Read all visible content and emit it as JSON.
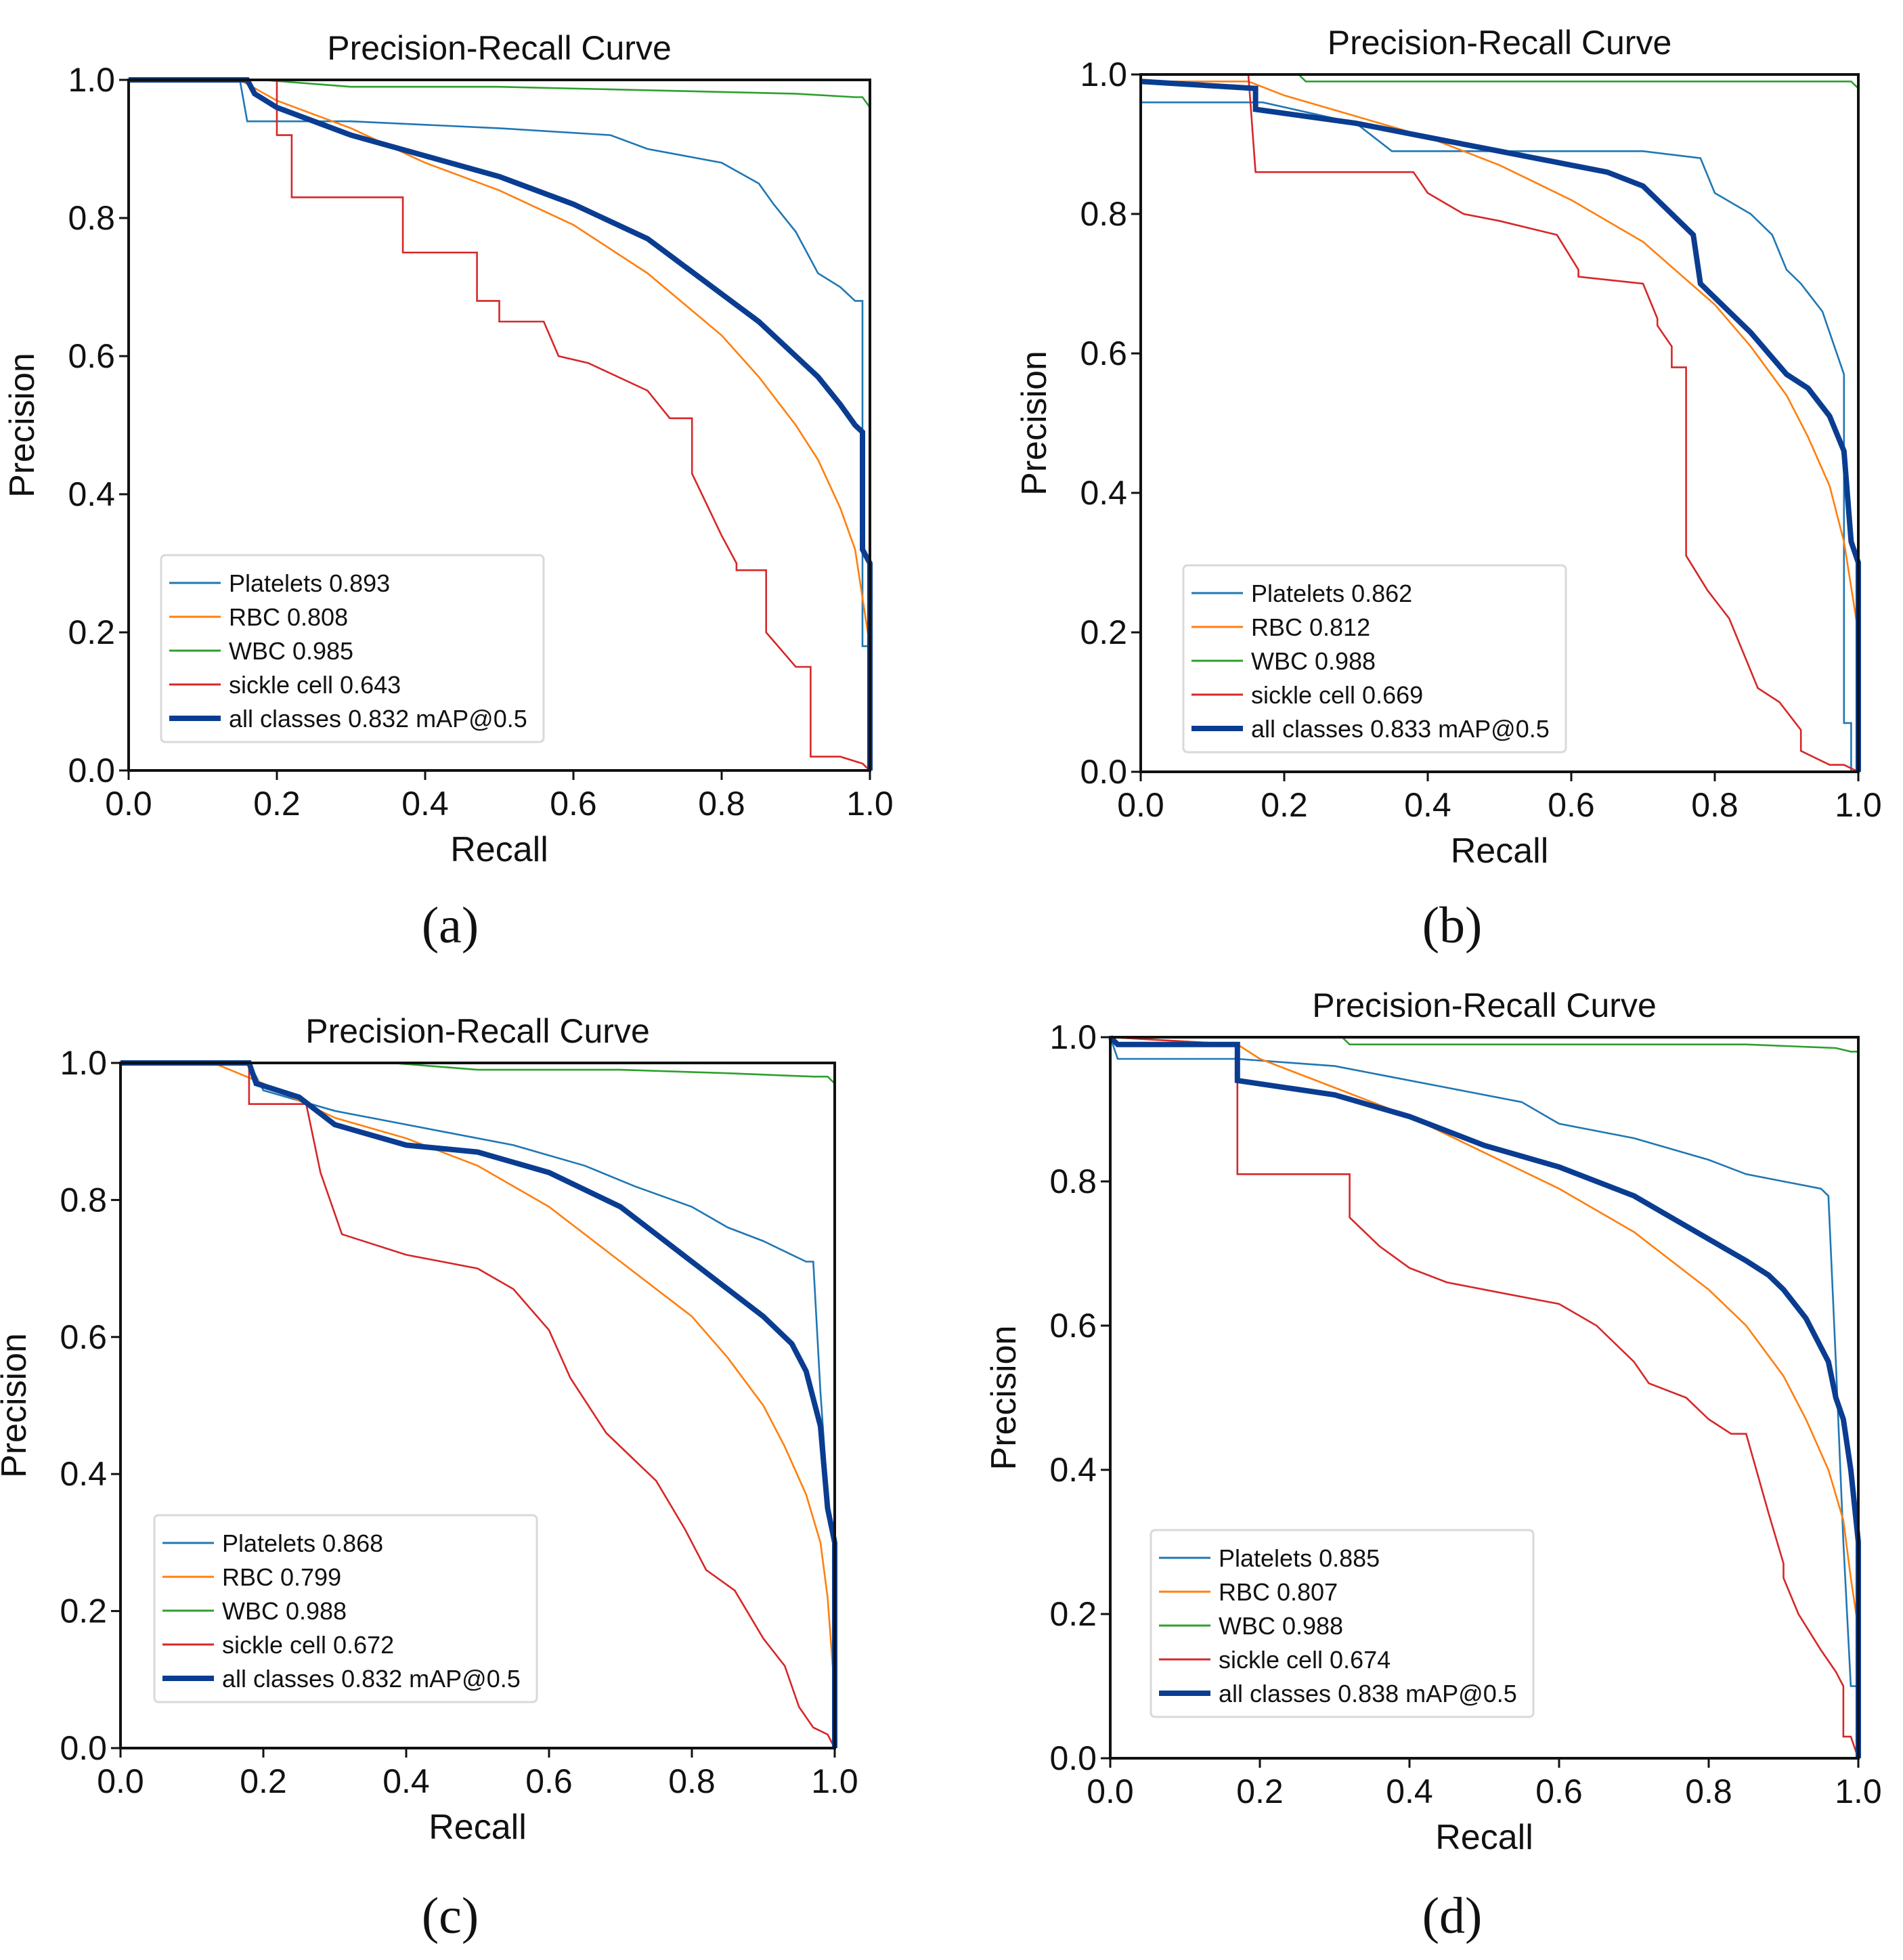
{
  "figure": {
    "panel_labels": [
      "(a)",
      "(b)",
      "(c)",
      "(d)"
    ]
  },
  "colors": {
    "Platelets": "#1f77b4",
    "RBC": "#ff7f0e",
    "WBC": "#2ca02c",
    "sickle cell": "#d62728",
    "all classes": "#0a3d91"
  },
  "chart_data": [
    {
      "type": "line",
      "panel": "(a)",
      "title": "Precision-Recall Curve",
      "xlabel": "Recall",
      "ylabel": "Precision",
      "xlim": [
        0,
        1
      ],
      "ylim": [
        0,
        1
      ],
      "xticks": [
        "0.0",
        "0.2",
        "0.4",
        "0.6",
        "0.8",
        "1.0"
      ],
      "yticks": [
        "0.0",
        "0.2",
        "0.4",
        "0.6",
        "0.8",
        "1.0"
      ],
      "legend_position": "lower-left",
      "series": [
        {
          "name": "Platelets",
          "label": "Platelets 0.893",
          "ap": 0.893,
          "x": [
            0,
            0.15,
            0.16,
            0.3,
            0.5,
            0.65,
            0.7,
            0.75,
            0.8,
            0.85,
            0.87,
            0.9,
            0.93,
            0.96,
            0.98,
            0.99,
            0.99,
            1.0,
            1.0
          ],
          "y": [
            1.0,
            1.0,
            0.94,
            0.94,
            0.93,
            0.92,
            0.9,
            0.89,
            0.88,
            0.85,
            0.82,
            0.78,
            0.72,
            0.7,
            0.68,
            0.68,
            0.18,
            0.18,
            0.0
          ]
        },
        {
          "name": "RBC",
          "label": "RBC 0.808",
          "ap": 0.808,
          "x": [
            0,
            0.15,
            0.2,
            0.3,
            0.4,
            0.5,
            0.6,
            0.7,
            0.8,
            0.85,
            0.9,
            0.93,
            0.96,
            0.98,
            0.99,
            1.0,
            1.0
          ],
          "y": [
            1.0,
            1.0,
            0.97,
            0.93,
            0.88,
            0.84,
            0.79,
            0.72,
            0.63,
            0.57,
            0.5,
            0.45,
            0.38,
            0.32,
            0.25,
            0.18,
            0.0
          ]
        },
        {
          "name": "WBC",
          "label": "WBC 0.985",
          "ap": 0.985,
          "x": [
            0,
            0.18,
            0.3,
            0.5,
            0.7,
            0.9,
            0.98,
            0.99,
            1.0,
            1.0
          ],
          "y": [
            1.0,
            1.0,
            0.99,
            0.99,
            0.985,
            0.98,
            0.975,
            0.975,
            0.96,
            0.0
          ]
        },
        {
          "name": "sickle cell",
          "label": "sickle cell 0.643",
          "ap": 0.643,
          "x": [
            0,
            0.2,
            0.2,
            0.22,
            0.22,
            0.37,
            0.37,
            0.47,
            0.47,
            0.5,
            0.5,
            0.56,
            0.58,
            0.62,
            0.7,
            0.73,
            0.76,
            0.76,
            0.8,
            0.82,
            0.82,
            0.86,
            0.86,
            0.9,
            0.92,
            0.92,
            0.96,
            0.99,
            1.0,
            1.0
          ],
          "y": [
            1.0,
            1.0,
            0.92,
            0.92,
            0.83,
            0.83,
            0.75,
            0.75,
            0.68,
            0.68,
            0.65,
            0.65,
            0.6,
            0.59,
            0.55,
            0.51,
            0.51,
            0.43,
            0.34,
            0.3,
            0.29,
            0.29,
            0.2,
            0.15,
            0.15,
            0.02,
            0.02,
            0.01,
            0.0,
            0.0
          ]
        },
        {
          "name": "all classes",
          "label": "all classes 0.832 mAP@0.5",
          "ap": 0.832,
          "bold": true,
          "x": [
            0,
            0.16,
            0.17,
            0.2,
            0.3,
            0.4,
            0.5,
            0.6,
            0.7,
            0.75,
            0.8,
            0.85,
            0.9,
            0.93,
            0.96,
            0.98,
            0.99,
            0.99,
            1.0,
            1.0
          ],
          "y": [
            1.0,
            1.0,
            0.98,
            0.96,
            0.92,
            0.89,
            0.86,
            0.82,
            0.77,
            0.73,
            0.69,
            0.65,
            0.6,
            0.57,
            0.53,
            0.5,
            0.49,
            0.32,
            0.3,
            0.0
          ]
        }
      ]
    },
    {
      "type": "line",
      "panel": "(b)",
      "title": "Precision-Recall Curve",
      "xlabel": "Recall",
      "ylabel": "Precision",
      "xlim": [
        0,
        1
      ],
      "ylim": [
        0,
        1
      ],
      "xticks": [
        "0.0",
        "0.2",
        "0.4",
        "0.6",
        "0.8",
        "1.0"
      ],
      "yticks": [
        "0.0",
        "0.2",
        "0.4",
        "0.6",
        "0.8",
        "1.0"
      ],
      "legend_position": "lower-left",
      "series": [
        {
          "name": "Platelets",
          "label": "Platelets 0.862",
          "ap": 0.862,
          "x": [
            0,
            0.17,
            0.3,
            0.35,
            0.5,
            0.7,
            0.78,
            0.8,
            0.85,
            0.88,
            0.9,
            0.92,
            0.95,
            0.97,
            0.98,
            0.98,
            0.99,
            0.99,
            1.0
          ],
          "y": [
            0.96,
            0.96,
            0.93,
            0.89,
            0.89,
            0.89,
            0.88,
            0.83,
            0.8,
            0.77,
            0.72,
            0.7,
            0.66,
            0.6,
            0.57,
            0.07,
            0.07,
            0.0,
            0.0
          ]
        },
        {
          "name": "RBC",
          "label": "RBC 0.812",
          "ap": 0.812,
          "x": [
            0,
            0.15,
            0.2,
            0.3,
            0.4,
            0.5,
            0.6,
            0.7,
            0.8,
            0.85,
            0.9,
            0.93,
            0.96,
            0.98,
            1.0,
            1.0
          ],
          "y": [
            0.99,
            0.99,
            0.97,
            0.94,
            0.91,
            0.87,
            0.82,
            0.76,
            0.67,
            0.61,
            0.54,
            0.48,
            0.41,
            0.33,
            0.2,
            0.0
          ]
        },
        {
          "name": "WBC",
          "label": "WBC 0.988",
          "ap": 0.988,
          "x": [
            0,
            0.22,
            0.23,
            0.5,
            0.8,
            0.99,
            1.0,
            1.0
          ],
          "y": [
            1.0,
            1.0,
            0.99,
            0.99,
            0.99,
            0.99,
            0.98,
            0.0
          ]
        },
        {
          "name": "sickle cell",
          "label": "sickle cell 0.669",
          "ap": 0.669,
          "x": [
            0,
            0.15,
            0.16,
            0.16,
            0.38,
            0.4,
            0.45,
            0.5,
            0.58,
            0.61,
            0.61,
            0.7,
            0.72,
            0.72,
            0.74,
            0.74,
            0.76,
            0.76,
            0.79,
            0.82,
            0.84,
            0.86,
            0.89,
            0.92,
            0.92,
            0.96,
            0.98,
            1.0,
            1.0
          ],
          "y": [
            1.0,
            1.0,
            0.86,
            0.86,
            0.86,
            0.83,
            0.8,
            0.79,
            0.77,
            0.72,
            0.71,
            0.7,
            0.65,
            0.64,
            0.61,
            0.58,
            0.58,
            0.31,
            0.26,
            0.22,
            0.17,
            0.12,
            0.1,
            0.06,
            0.03,
            0.01,
            0.01,
            0.0,
            0.0
          ]
        },
        {
          "name": "all classes",
          "label": "all classes 0.833 mAP@0.5",
          "ap": 0.833,
          "bold": true,
          "x": [
            0,
            0.16,
            0.16,
            0.3,
            0.4,
            0.5,
            0.6,
            0.65,
            0.7,
            0.75,
            0.77,
            0.78,
            0.8,
            0.85,
            0.9,
            0.93,
            0.96,
            0.98,
            0.99,
            1.0,
            1.0
          ],
          "y": [
            0.99,
            0.98,
            0.95,
            0.93,
            0.91,
            0.89,
            0.87,
            0.86,
            0.84,
            0.79,
            0.77,
            0.7,
            0.68,
            0.63,
            0.57,
            0.55,
            0.51,
            0.46,
            0.33,
            0.3,
            0.0
          ]
        }
      ]
    },
    {
      "type": "line",
      "panel": "(c)",
      "title": "Precision-Recall Curve",
      "xlabel": "Recall",
      "ylabel": "Precision",
      "xlim": [
        0,
        1
      ],
      "ylim": [
        0,
        1
      ],
      "xticks": [
        "0.0",
        "0.2",
        "0.4",
        "0.6",
        "0.8",
        "1.0"
      ],
      "yticks": [
        "0.0",
        "0.2",
        "0.4",
        "0.6",
        "0.8",
        "1.0"
      ],
      "legend_position": "lower-left",
      "series": [
        {
          "name": "Platelets",
          "label": "Platelets 0.868",
          "ap": 0.868,
          "x": [
            0,
            0.18,
            0.2,
            0.3,
            0.45,
            0.55,
            0.65,
            0.72,
            0.8,
            0.85,
            0.9,
            0.94,
            0.96,
            0.97,
            0.98,
            0.99,
            1.0,
            1.0
          ],
          "y": [
            1.0,
            1.0,
            0.96,
            0.93,
            0.9,
            0.88,
            0.85,
            0.82,
            0.79,
            0.76,
            0.74,
            0.72,
            0.71,
            0.71,
            0.52,
            0.37,
            0.28,
            0.0
          ]
        },
        {
          "name": "RBC",
          "label": "RBC 0.799",
          "ap": 0.799,
          "x": [
            0,
            0.13,
            0.2,
            0.3,
            0.4,
            0.5,
            0.6,
            0.7,
            0.8,
            0.85,
            0.9,
            0.93,
            0.96,
            0.98,
            0.99,
            1.0,
            1.0
          ],
          "y": [
            1.0,
            1.0,
            0.97,
            0.92,
            0.89,
            0.85,
            0.79,
            0.71,
            0.63,
            0.57,
            0.5,
            0.44,
            0.37,
            0.3,
            0.22,
            0.08,
            0.0
          ]
        },
        {
          "name": "WBC",
          "label": "WBC 0.988",
          "ap": 0.988,
          "x": [
            0,
            0.38,
            0.5,
            0.7,
            0.85,
            0.97,
            0.99,
            1.0,
            1.0
          ],
          "y": [
            1.0,
            1.0,
            0.99,
            0.99,
            0.985,
            0.98,
            0.98,
            0.97,
            0.0
          ]
        },
        {
          "name": "sickle cell",
          "label": "sickle cell 0.672",
          "ap": 0.672,
          "x": [
            0,
            0.18,
            0.18,
            0.26,
            0.28,
            0.28,
            0.31,
            0.31,
            0.4,
            0.5,
            0.55,
            0.6,
            0.63,
            0.68,
            0.72,
            0.75,
            0.79,
            0.82,
            0.86,
            0.9,
            0.93,
            0.95,
            0.97,
            0.99,
            1.0,
            1.0
          ],
          "y": [
            1.0,
            1.0,
            0.94,
            0.94,
            0.84,
            0.84,
            0.75,
            0.75,
            0.72,
            0.7,
            0.67,
            0.61,
            0.54,
            0.46,
            0.42,
            0.39,
            0.32,
            0.26,
            0.23,
            0.16,
            0.12,
            0.06,
            0.03,
            0.02,
            0.0,
            0.0
          ]
        },
        {
          "name": "all classes",
          "label": "all classes 0.832 mAP@0.5",
          "ap": 0.832,
          "bold": true,
          "x": [
            0,
            0.18,
            0.19,
            0.25,
            0.3,
            0.4,
            0.5,
            0.6,
            0.7,
            0.75,
            0.8,
            0.85,
            0.9,
            0.94,
            0.96,
            0.97,
            0.98,
            0.99,
            1.0,
            1.0
          ],
          "y": [
            1.0,
            1.0,
            0.97,
            0.95,
            0.91,
            0.88,
            0.87,
            0.84,
            0.79,
            0.75,
            0.71,
            0.67,
            0.63,
            0.59,
            0.55,
            0.51,
            0.47,
            0.35,
            0.3,
            0.0
          ]
        }
      ]
    },
    {
      "type": "line",
      "panel": "(d)",
      "title": "Precision-Recall Curve",
      "xlabel": "Recall",
      "ylabel": "Precision",
      "xlim": [
        0,
        1
      ],
      "ylim": [
        0,
        1
      ],
      "xticks": [
        "0.0",
        "0.2",
        "0.4",
        "0.6",
        "0.8",
        "1.0"
      ],
      "yticks": [
        "0.0",
        "0.2",
        "0.4",
        "0.6",
        "0.8",
        "1.0"
      ],
      "legend_position": "lower-left",
      "series": [
        {
          "name": "Platelets",
          "label": "Platelets 0.885",
          "ap": 0.885,
          "x": [
            0,
            0.01,
            0.17,
            0.3,
            0.45,
            0.55,
            0.6,
            0.7,
            0.8,
            0.85,
            0.9,
            0.95,
            0.96,
            0.97,
            0.98,
            0.99,
            1.0,
            1.0
          ],
          "y": [
            1.0,
            0.97,
            0.97,
            0.96,
            0.93,
            0.91,
            0.88,
            0.86,
            0.83,
            0.81,
            0.8,
            0.79,
            0.78,
            0.55,
            0.3,
            0.1,
            0.1,
            0.0
          ]
        },
        {
          "name": "RBC",
          "label": "RBC 0.807",
          "ap": 0.807,
          "x": [
            0,
            0.17,
            0.2,
            0.3,
            0.4,
            0.5,
            0.6,
            0.7,
            0.8,
            0.85,
            0.9,
            0.93,
            0.96,
            0.98,
            0.99,
            1.0,
            1.0
          ],
          "y": [
            1.0,
            0.99,
            0.97,
            0.93,
            0.89,
            0.84,
            0.79,
            0.73,
            0.65,
            0.6,
            0.53,
            0.47,
            0.4,
            0.33,
            0.25,
            0.18,
            0.0
          ]
        },
        {
          "name": "WBC",
          "label": "WBC 0.988",
          "ap": 0.988,
          "x": [
            0,
            0.31,
            0.32,
            0.6,
            0.85,
            0.97,
            0.99,
            1.0,
            1.0
          ],
          "y": [
            1.0,
            1.0,
            0.99,
            0.99,
            0.99,
            0.985,
            0.98,
            0.98,
            0.0
          ]
        },
        {
          "name": "sickle cell",
          "label": "sickle cell 0.674",
          "ap": 0.674,
          "x": [
            0,
            0.17,
            0.17,
            0.32,
            0.32,
            0.36,
            0.4,
            0.45,
            0.5,
            0.6,
            0.65,
            0.7,
            0.72,
            0.77,
            0.8,
            0.83,
            0.85,
            0.88,
            0.9,
            0.9,
            0.92,
            0.95,
            0.97,
            0.98,
            0.98,
            0.99,
            1.0,
            1.0
          ],
          "y": [
            1.0,
            0.99,
            0.81,
            0.81,
            0.75,
            0.71,
            0.68,
            0.66,
            0.65,
            0.63,
            0.6,
            0.55,
            0.52,
            0.5,
            0.47,
            0.45,
            0.45,
            0.34,
            0.27,
            0.25,
            0.2,
            0.15,
            0.12,
            0.1,
            0.03,
            0.03,
            0.0,
            0.0
          ]
        },
        {
          "name": "all classes",
          "label": "all classes 0.838 mAP@0.5",
          "ap": 0.838,
          "bold": true,
          "x": [
            0,
            0.01,
            0.17,
            0.17,
            0.3,
            0.4,
            0.5,
            0.6,
            0.7,
            0.75,
            0.8,
            0.85,
            0.88,
            0.9,
            0.93,
            0.96,
            0.97,
            0.98,
            0.99,
            1.0,
            1.0
          ],
          "y": [
            1.0,
            0.99,
            0.99,
            0.94,
            0.92,
            0.89,
            0.85,
            0.82,
            0.78,
            0.75,
            0.72,
            0.69,
            0.67,
            0.65,
            0.61,
            0.55,
            0.5,
            0.47,
            0.4,
            0.3,
            0.0
          ]
        }
      ]
    }
  ]
}
